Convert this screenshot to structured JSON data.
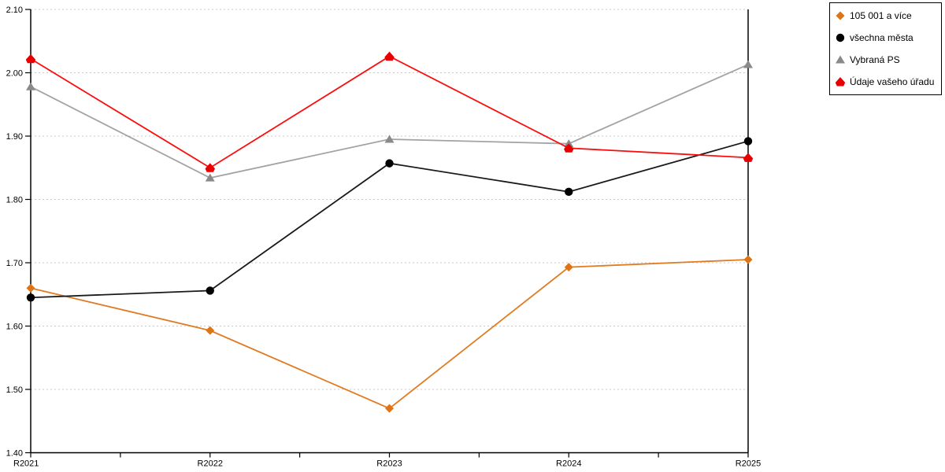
{
  "chart_data": {
    "type": "line",
    "title": "",
    "xlabel": "",
    "ylabel": "",
    "categories": [
      "R2021",
      "R2022",
      "R2023",
      "R2024",
      "R2025"
    ],
    "series": [
      {
        "name": "105 001 a více",
        "marker": "diamond",
        "line_color": "#E07B21",
        "marker_color": "#DE7415",
        "values": [
          1.66,
          1.593,
          1.47,
          1.693,
          1.705
        ]
      },
      {
        "name": "všechna města",
        "marker": "circle",
        "line_color": "#1A1A1A",
        "marker_color": "#000000",
        "values": [
          1.645,
          1.656,
          1.857,
          1.812,
          1.892
        ]
      },
      {
        "name": "Vybraná PS",
        "marker": "triangle",
        "line_color": "#A3A3A3",
        "marker_color": "#8A8A8A",
        "values": [
          1.978,
          1.834,
          1.895,
          1.888,
          2.013
        ]
      },
      {
        "name": "Údaje vašeho úřadu",
        "marker": "pentagon",
        "line_color": "#FB0D0D",
        "marker_color": "#E80000",
        "values": [
          2.022,
          1.85,
          2.026,
          1.881,
          1.866
        ]
      }
    ],
    "ylim": [
      1.4,
      2.1
    ],
    "ytick_step": 0.1,
    "ytick_labels": [
      "1.40",
      "1.50",
      "1.60",
      "1.70",
      "1.80",
      "1.90",
      "2.00",
      "2.10"
    ],
    "grid": "dashed-horizontal",
    "grid_color": "#C8C8C8",
    "axis_color": "#000000",
    "legend_position": "top-right"
  }
}
